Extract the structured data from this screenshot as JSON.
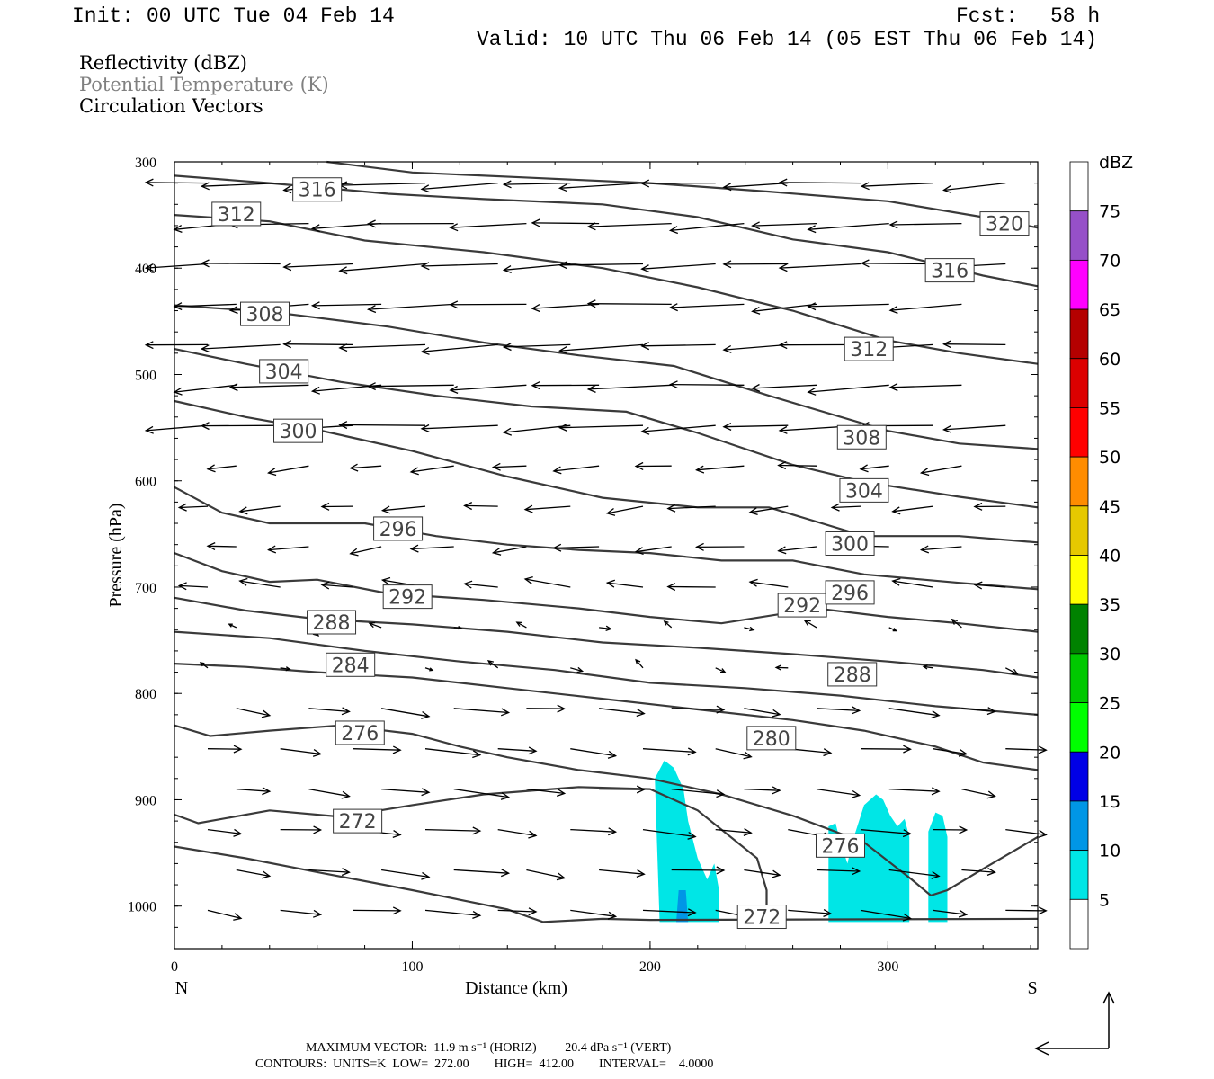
{
  "header": {
    "init": "Init: 00 UTC Tue 04 Feb 14",
    "fcst_label": "Fcst:",
    "fcst_value": "58 h",
    "valid": "Valid: 10 UTC Thu 06 Feb 14 (05 EST Thu 06 Feb 14)"
  },
  "fields": {
    "reflectivity": "Reflectivity (dBZ)",
    "theta": "Potential Temperature (K)",
    "vectors": "Circulation Vectors"
  },
  "colors": {
    "theta_contour": "#3a3a3a",
    "theta_legend_text": "#808080",
    "refl_5": "#00e6e6",
    "refl_10": "#0096e6",
    "refl_15": "#0000e6"
  },
  "chart_data": {
    "type": "cross-section",
    "xlabel": "Distance (km)",
    "ylabel": "Pressure (hPa)",
    "x_range": [
      0,
      363
    ],
    "y_range": [
      300,
      1040
    ],
    "y_inverted": true,
    "x_ticks": [
      "0",
      "100",
      "200",
      "300"
    ],
    "y_ticks": [
      "300",
      "400",
      "500",
      "600",
      "700",
      "800",
      "900",
      "1000"
    ],
    "x_end_labels": {
      "left": "N",
      "right": "S"
    },
    "colorbar": {
      "unit": "dBZ",
      "levels": [
        "5",
        "10",
        "15",
        "20",
        "25",
        "30",
        "35",
        "40",
        "45",
        "50",
        "55",
        "60",
        "65",
        "70",
        "75"
      ],
      "colors": [
        "#ffffff",
        "#00e6e6",
        "#0096e6",
        "#0000e6",
        "#00ff00",
        "#00c800",
        "#008200",
        "#ffff00",
        "#e6c800",
        "#ff8c00",
        "#ff0000",
        "#dc0000",
        "#b40000",
        "#ff00ff",
        "#9650c8",
        "#ffffff"
      ]
    },
    "theta_contours": [
      {
        "label": "272",
        "labels": [
          {
            "x": 77,
            "p": 920
          },
          {
            "x": 247,
            "p": 1010
          }
        ],
        "points": [
          [
            0,
            914
          ],
          [
            10,
            922
          ],
          [
            40,
            910
          ],
          [
            70,
            916
          ],
          [
            100,
            905
          ],
          [
            130,
            895
          ],
          [
            170,
            888
          ],
          [
            200,
            890
          ],
          [
            220,
            910
          ],
          [
            245,
            955
          ],
          [
            249,
            985
          ],
          [
            249,
            1000
          ]
        ]
      },
      {
        "label": "272b",
        "labels": [],
        "points": [
          [
            0,
            944
          ],
          [
            30,
            955
          ],
          [
            60,
            968
          ],
          [
            100,
            985
          ],
          [
            140,
            1003
          ],
          [
            155,
            1015
          ],
          [
            180,
            1012
          ],
          [
            200,
            1013
          ],
          [
            363,
            1012
          ]
        ]
      },
      {
        "label": "276",
        "labels": [
          {
            "x": 78,
            "p": 837
          },
          {
            "x": 280,
            "p": 943
          }
        ],
        "points": [
          [
            0,
            830
          ],
          [
            15,
            840
          ],
          [
            40,
            835
          ],
          [
            70,
            830
          ],
          [
            100,
            838
          ],
          [
            120,
            850
          ],
          [
            140,
            860
          ],
          [
            170,
            872
          ],
          [
            200,
            880
          ],
          [
            230,
            895
          ],
          [
            260,
            915
          ],
          [
            290,
            940
          ],
          [
            310,
            975
          ],
          [
            318,
            990
          ],
          [
            325,
            985
          ],
          [
            340,
            965
          ],
          [
            363,
            935
          ]
        ]
      },
      {
        "label": "280",
        "labels": [
          {
            "x": 251,
            "p": 842
          }
        ],
        "points": [
          [
            0,
            772
          ],
          [
            30,
            775
          ],
          [
            60,
            780
          ],
          [
            100,
            785
          ],
          [
            140,
            795
          ],
          [
            180,
            805
          ],
          [
            220,
            815
          ],
          [
            260,
            825
          ],
          [
            290,
            835
          ],
          [
            320,
            850
          ],
          [
            340,
            865
          ],
          [
            363,
            872
          ]
        ]
      },
      {
        "label": "284",
        "labels": [
          {
            "x": 74,
            "p": 773
          }
        ],
        "points": [
          [
            0,
            742
          ],
          [
            40,
            748
          ],
          [
            80,
            760
          ],
          [
            120,
            770
          ],
          [
            160,
            778
          ],
          [
            200,
            790
          ],
          [
            240,
            795
          ],
          [
            280,
            802
          ],
          [
            320,
            812
          ],
          [
            363,
            820
          ]
        ]
      },
      {
        "label": "288",
        "labels": [
          {
            "x": 66,
            "p": 733
          },
          {
            "x": 285,
            "p": 782
          }
        ],
        "points": [
          [
            0,
            710
          ],
          [
            30,
            722
          ],
          [
            60,
            730
          ],
          [
            100,
            735
          ],
          [
            140,
            742
          ],
          [
            180,
            752
          ],
          [
            220,
            757
          ],
          [
            260,
            763
          ],
          [
            300,
            770
          ],
          [
            340,
            778
          ],
          [
            363,
            785
          ]
        ]
      },
      {
        "label": "292",
        "labels": [
          {
            "x": 98,
            "p": 709
          },
          {
            "x": 264,
            "p": 717
          }
        ],
        "points": [
          [
            0,
            668
          ],
          [
            20,
            685
          ],
          [
            40,
            695
          ],
          [
            60,
            693
          ],
          [
            90,
            706
          ],
          [
            130,
            712
          ],
          [
            170,
            720
          ],
          [
            200,
            728
          ],
          [
            230,
            734
          ],
          [
            270,
            720
          ],
          [
            300,
            728
          ],
          [
            330,
            734
          ],
          [
            363,
            742
          ]
        ]
      },
      {
        "label": "296",
        "labels": [
          {
            "x": 94,
            "p": 645
          },
          {
            "x": 284,
            "p": 705
          }
        ],
        "points": [
          [
            0,
            606
          ],
          [
            20,
            630
          ],
          [
            40,
            640
          ],
          [
            80,
            640
          ],
          [
            110,
            652
          ],
          [
            140,
            660
          ],
          [
            170,
            665
          ],
          [
            200,
            668
          ],
          [
            230,
            675
          ],
          [
            260,
            675
          ],
          [
            290,
            688
          ],
          [
            330,
            696
          ],
          [
            363,
            702
          ]
        ]
      },
      {
        "label": "300",
        "labels": [
          {
            "x": 52,
            "p": 553
          },
          {
            "x": 284,
            "p": 659
          }
        ],
        "points": [
          [
            0,
            525
          ],
          [
            30,
            540
          ],
          [
            60,
            552
          ],
          [
            100,
            572
          ],
          [
            140,
            596
          ],
          [
            180,
            616
          ],
          [
            220,
            625
          ],
          [
            250,
            625
          ],
          [
            290,
            652
          ],
          [
            330,
            652
          ],
          [
            363,
            658
          ]
        ]
      },
      {
        "label": "304",
        "labels": [
          {
            "x": 46,
            "p": 497
          },
          {
            "x": 290,
            "p": 609
          }
        ],
        "points": [
          [
            0,
            476
          ],
          [
            30,
            490
          ],
          [
            70,
            507
          ],
          [
            110,
            520
          ],
          [
            150,
            530
          ],
          [
            190,
            535
          ],
          [
            220,
            555
          ],
          [
            260,
            585
          ],
          [
            290,
            601
          ],
          [
            330,
            615
          ],
          [
            363,
            625
          ]
        ]
      },
      {
        "label": "308",
        "labels": [
          {
            "x": 38,
            "p": 443
          },
          {
            "x": 289,
            "p": 559
          }
        ],
        "points": [
          [
            0,
            435
          ],
          [
            40,
            441
          ],
          [
            90,
            455
          ],
          [
            130,
            470
          ],
          [
            170,
            482
          ],
          [
            210,
            492
          ],
          [
            250,
            520
          ],
          [
            300,
            553
          ],
          [
            330,
            565
          ],
          [
            363,
            570
          ]
        ]
      },
      {
        "label": "312",
        "labels": [
          {
            "x": 26,
            "p": 349
          },
          {
            "x": 292,
            "p": 476
          }
        ],
        "points": [
          [
            0,
            350
          ],
          [
            40,
            356
          ],
          [
            80,
            374
          ],
          [
            130,
            385
          ],
          [
            180,
            400
          ],
          [
            220,
            418
          ],
          [
            260,
            440
          ],
          [
            300,
            468
          ],
          [
            330,
            480
          ],
          [
            363,
            490
          ]
        ]
      },
      {
        "label": "316",
        "labels": [
          {
            "x": 60,
            "p": 326
          },
          {
            "x": 326,
            "p": 402
          }
        ],
        "points": [
          [
            0,
            313
          ],
          [
            40,
            320
          ],
          [
            90,
            330
          ],
          [
            130,
            335
          ],
          [
            180,
            340
          ],
          [
            220,
            352
          ],
          [
            260,
            373
          ],
          [
            300,
            385
          ],
          [
            340,
            407
          ],
          [
            363,
            417
          ]
        ]
      },
      {
        "label": "320",
        "labels": [
          {
            "x": 349,
            "p": 358
          }
        ],
        "points": [
          [
            64,
            300
          ],
          [
            100,
            310
          ],
          [
            150,
            315
          ],
          [
            200,
            320
          ],
          [
            250,
            328
          ],
          [
            300,
            337
          ],
          [
            340,
            352
          ],
          [
            363,
            362
          ]
        ]
      }
    ],
    "reflectivity_regions": [
      {
        "dbz": 5,
        "points": [
          [
            204,
            1015
          ],
          [
            202,
            880
          ],
          [
            206,
            863
          ],
          [
            210,
            870
          ],
          [
            214,
            890
          ],
          [
            216,
            920
          ],
          [
            220,
            955
          ],
          [
            224,
            975
          ],
          [
            227,
            960
          ],
          [
            229,
            985
          ],
          [
            229,
            1015
          ]
        ]
      },
      {
        "dbz": 10,
        "points": [
          [
            211,
            1015
          ],
          [
            212,
            985
          ],
          [
            215,
            985
          ],
          [
            216,
            1015
          ]
        ]
      },
      {
        "dbz": 5,
        "points": [
          [
            275,
            1015
          ],
          [
            275,
            925
          ],
          [
            278,
            922
          ],
          [
            280,
            940
          ],
          [
            283,
            960
          ],
          [
            285,
            940
          ],
          [
            290,
            905
          ],
          [
            295,
            895
          ],
          [
            298,
            900
          ],
          [
            301,
            915
          ],
          [
            304,
            925
          ],
          [
            307,
            918
          ],
          [
            309,
            935
          ],
          [
            309,
            1015
          ]
        ]
      },
      {
        "dbz": 5,
        "points": [
          [
            317,
            1015
          ],
          [
            317,
            930
          ],
          [
            320,
            912
          ],
          [
            323,
            915
          ],
          [
            325,
            935
          ],
          [
            325,
            1015
          ]
        ]
      }
    ]
  },
  "footer": {
    "max_vector": "MAXIMUM VECTOR:  11.9 m s⁻¹ (HORIZ)         20.4 dPa s⁻¹ (VERT)",
    "contours": "CONTOURS:  UNITS=K  LOW=  272.00        HIGH=  412.00        INTERVAL=    4.0000"
  }
}
